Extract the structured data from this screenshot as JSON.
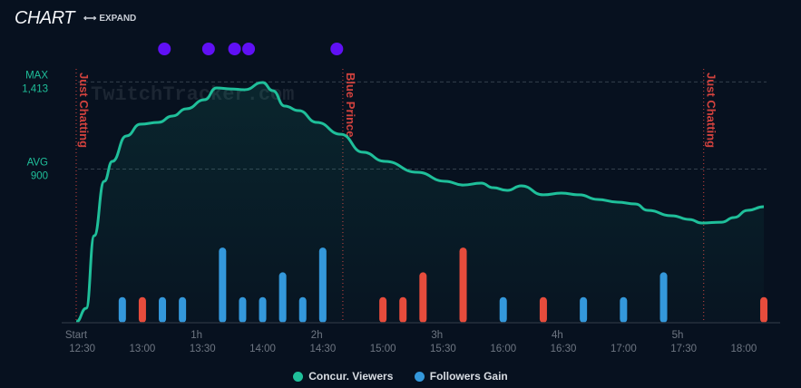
{
  "header": {
    "title": "CHART",
    "expand_icon": "arrows-horizontal-icon",
    "expand_label": "EXPAND"
  },
  "colors": {
    "viewers": "#1fbf9a",
    "followers_gain": "#3498db",
    "followers_loss": "#e74c3c",
    "event_dot": "#6010f5",
    "game_line": "#d1423e"
  },
  "chart_data": {
    "type": "line",
    "title": "CHART",
    "x_unit": "minutes since stream start",
    "xlim": [
      0,
      346
    ],
    "y_reference": [
      {
        "label": "MAX",
        "value_label": "1,413",
        "value": 1413
      },
      {
        "label": "AVG",
        "value_label": "900",
        "value": 900
      }
    ],
    "hour_ticks": [
      {
        "t": 0,
        "label": "Start"
      },
      {
        "t": 60,
        "label": "1h"
      },
      {
        "t": 120,
        "label": "2h"
      },
      {
        "t": 180,
        "label": "3h"
      },
      {
        "t": 240,
        "label": "4h"
      },
      {
        "t": 300,
        "label": "5h"
      }
    ],
    "clock_ticks": [
      {
        "t": 3,
        "label": "12:30"
      },
      {
        "t": 33,
        "label": "13:00"
      },
      {
        "t": 63,
        "label": "13:30"
      },
      {
        "t": 93,
        "label": "14:00"
      },
      {
        "t": 123,
        "label": "14:30"
      },
      {
        "t": 153,
        "label": "15:00"
      },
      {
        "t": 183,
        "label": "15:30"
      },
      {
        "t": 213,
        "label": "16:00"
      },
      {
        "t": 243,
        "label": "16:30"
      },
      {
        "t": 273,
        "label": "17:00"
      },
      {
        "t": 303,
        "label": "17:30"
      },
      {
        "t": 333,
        "label": "18:00"
      }
    ],
    "series": [
      {
        "name": "Concur. Viewers",
        "type": "area",
        "x": [
          0,
          5,
          9,
          14,
          18,
          25,
          32,
          41,
          48,
          55,
          64,
          70,
          77,
          84,
          93,
          98,
          104,
          111,
          120,
          132,
          143,
          154,
          170,
          184,
          193,
          202,
          208,
          215,
          222,
          233,
          242,
          251,
          260,
          270,
          279,
          285,
          297,
          306,
          312,
          322,
          328,
          335,
          343
        ],
        "y": [
          0,
          80,
          507,
          828,
          945,
          1095,
          1164,
          1175,
          1212,
          1255,
          1308,
          1378,
          1372,
          1367,
          1410,
          1362,
          1271,
          1244,
          1175,
          1105,
          999,
          945,
          881,
          828,
          806,
          817,
          790,
          774,
          801,
          748,
          758,
          748,
          721,
          705,
          694,
          657,
          625,
          603,
          582,
          587,
          614,
          657,
          678
        ]
      },
      {
        "name": "Followers Gain",
        "type": "bar",
        "x": [
          23,
          33,
          43,
          53,
          73,
          83,
          93,
          103,
          113,
          123,
          153,
          163,
          173,
          193,
          213,
          233,
          253,
          273,
          293,
          343
        ],
        "y": [
          1,
          -1,
          1,
          1,
          3,
          1,
          1,
          2,
          1,
          3,
          -1,
          -1,
          -2,
          -3,
          1,
          -1,
          1,
          1,
          2,
          -1
        ]
      }
    ],
    "events": [
      44,
      66,
      79,
      86,
      130
    ],
    "games": [
      {
        "t": 0,
        "label": "Just Chatting"
      },
      {
        "t": 133,
        "label": "Blue Prince"
      },
      {
        "t": 313,
        "label": "Just Chatting"
      }
    ],
    "watermark": "TwitchTracker.com",
    "legend": [
      {
        "label": "Concur. Viewers"
      },
      {
        "label": "Followers Gain"
      }
    ],
    "legend_position": "bottom-center"
  }
}
